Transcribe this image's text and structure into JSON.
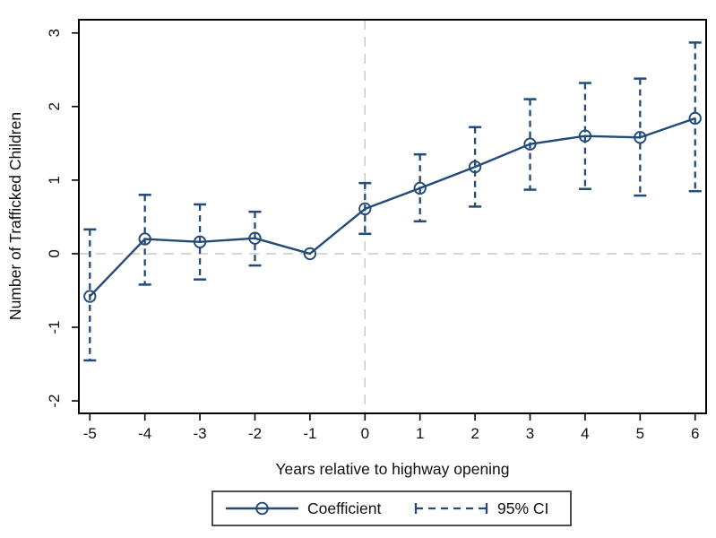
{
  "chart_data": {
    "type": "line",
    "title": "",
    "xlabel": "Years relative to highway opening",
    "ylabel": "Number of Trafficked Children",
    "x": [
      -5,
      -4,
      -3,
      -2,
      -1,
      0,
      1,
      2,
      3,
      4,
      5,
      6
    ],
    "series": [
      {
        "name": "Coefficient",
        "values": [
          -0.58,
          0.2,
          0.16,
          0.21,
          0,
          0.61,
          0.89,
          1.18,
          1.49,
          1.6,
          1.58,
          1.84
        ]
      }
    ],
    "ci": {
      "name": "95% CI",
      "low": [
        -1.45,
        -0.42,
        -0.35,
        -0.16,
        null,
        0.27,
        0.44,
        0.64,
        0.87,
        0.88,
        0.79,
        0.85
      ],
      "high": [
        0.33,
        0.8,
        0.67,
        0.57,
        null,
        0.96,
        1.35,
        1.72,
        2.1,
        2.32,
        2.38,
        2.87
      ]
    },
    "xlim": [
      -5.2,
      6.2
    ],
    "ylim": [
      -2.17,
      3.18
    ],
    "xticks": [
      "-5",
      "-4",
      "-3",
      "-2",
      "-1",
      "0",
      "1",
      "2",
      "3",
      "4",
      "5",
      "6"
    ],
    "yticks": [
      "-2",
      "-1",
      "0",
      "1",
      "2",
      "3"
    ],
    "reference_lines": {
      "x": 0,
      "y": 0
    },
    "grid": "reference lines only, dashed",
    "legend_position": "bottom-center, boxed",
    "colors": {
      "line": "#234a78",
      "ci": "#234a78",
      "grid": "#c4cccb",
      "axis": "#000000",
      "text": "#0f0f0f",
      "legend_border": "#2f2f2f",
      "background": "#ffffff"
    }
  },
  "legend": {
    "items": [
      {
        "label": "Coefficient",
        "sample": "solid-line-circle-marker"
      },
      {
        "label": "95% CI",
        "sample": "dashed-line-end-caps"
      }
    ]
  }
}
